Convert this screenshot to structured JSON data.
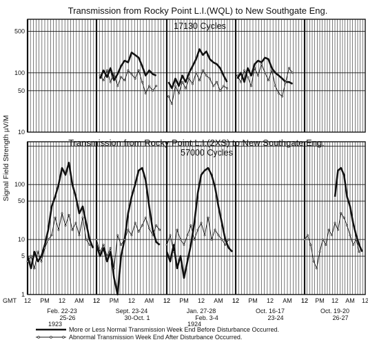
{
  "chart_data": {
    "type": "line",
    "ylabel": "Signal Field Strength µV/M",
    "x_axis_start": "GMT",
    "hour_ticks": [
      "12",
      "PM",
      "12",
      "AM",
      "12"
    ],
    "weekends": [
      {
        "dates": "Feb. 22-23\n25-26",
        "year": "1923"
      },
      {
        "dates": "Sept. 23-24\n30-Oct. 1",
        "year": ""
      },
      {
        "dates": "Jan. 27-28\nFeb. 3-4",
        "year": "1924"
      },
      {
        "dates": "Oct. 16-17\n23-24",
        "year": ""
      },
      {
        "dates": "Oct. 19-20\n26-27",
        "year": ""
      }
    ],
    "legend": [
      {
        "label": "More or Less Normal Transmission Week End Before Disturbance Occurred.",
        "style": "heavy"
      },
      {
        "label": "Abnormal Transmission Week End After Disturbance Occurred.",
        "style": "light-circles"
      }
    ],
    "panels": [
      {
        "title": "Transmission from Rocky Point L.I.(WQL) to New Southgate Eng.",
        "subtitle": "17130 Cycles",
        "yscale": "log",
        "ylim": [
          10,
          800
        ],
        "yticks": [
          500,
          100,
          50,
          10
        ],
        "series": [
          {
            "name": "normal",
            "segments": [
              {
                "weekend": 1,
                "x": [
                  0.1,
                  0.2,
                  0.3,
                  0.4,
                  0.5,
                  0.6,
                  0.7,
                  0.8,
                  0.9,
                  1.0,
                  1.1,
                  1.2,
                  1.3,
                  1.4,
                  1.5,
                  1.6,
                  1.7
                ],
                "y": [
                  80,
                  110,
                  85,
                  120,
                  75,
                  95,
                  130,
                  160,
                  150,
                  220,
                  200,
                  180,
                  130,
                  90,
                  110,
                  95,
                  90
                ]
              },
              {
                "weekend": 2,
                "x": [
                  0.05,
                  0.15,
                  0.25,
                  0.35,
                  0.45,
                  0.55,
                  0.65,
                  0.75,
                  0.85,
                  0.95,
                  1.05,
                  1.15,
                  1.25,
                  1.35,
                  1.45,
                  1.55,
                  1.65,
                  1.75
                ],
                "y": [
                  70,
                  55,
                  80,
                  60,
                  90,
                  70,
                  100,
                  130,
                  170,
                  250,
                  200,
                  230,
                  170,
                  150,
                  140,
                  120,
                  90,
                  70
                ]
              },
              {
                "weekend": 3,
                "x": [
                  0.05,
                  0.15,
                  0.25,
                  0.35,
                  0.45,
                  0.55,
                  0.65,
                  0.75,
                  0.85,
                  0.95,
                  1.05,
                  1.15,
                  1.25,
                  1.35,
                  1.45,
                  1.55,
                  1.65
                ],
                "y": [
                  80,
                  100,
                  70,
                  120,
                  90,
                  140,
                  160,
                  150,
                  180,
                  170,
                  120,
                  100,
                  90,
                  80,
                  70,
                  70,
                  65
                ]
              }
            ]
          },
          {
            "name": "abnormal",
            "segments": [
              {
                "weekend": 1,
                "x": [
                  0.1,
                  0.2,
                  0.3,
                  0.4,
                  0.5,
                  0.6,
                  0.7,
                  0.8,
                  0.9,
                  1.0,
                  1.1,
                  1.2,
                  1.3,
                  1.4,
                  1.5,
                  1.6,
                  1.7
                ],
                "y": [
                  90,
                  75,
                  110,
                  70,
                  95,
                  60,
                  85,
                  75,
                  110,
                  95,
                  80,
                  110,
                  70,
                  45,
                  60,
                  50,
                  60
                ]
              },
              {
                "weekend": 2,
                "x": [
                  0.05,
                  0.15,
                  0.25,
                  0.35,
                  0.45,
                  0.55,
                  0.65,
                  0.75,
                  0.85,
                  0.95,
                  1.05,
                  1.15,
                  1.25,
                  1.35,
                  1.45,
                  1.55,
                  1.65,
                  1.75
                ],
                "y": [
                  40,
                  30,
                  60,
                  45,
                  70,
                  55,
                  80,
                  65,
                  100,
                  75,
                  110,
                  90,
                  80,
                  60,
                  70,
                  50,
                  60,
                  55
                ]
              },
              {
                "weekend": 3,
                "x": [
                  0.05,
                  0.15,
                  0.25,
                  0.35,
                  0.45,
                  0.55,
                  0.65,
                  0.75,
                  0.85,
                  0.95,
                  1.05,
                  1.15,
                  1.25,
                  1.35,
                  1.45,
                  1.55,
                  1.65
                ],
                "y": [
                  90,
                  70,
                  110,
                  85,
                  60,
                  120,
                  90,
                  140,
                  100,
                  75,
                  110,
                  60,
                  45,
                  40,
                  70,
                  120,
                  100
                ]
              }
            ]
          }
        ]
      },
      {
        "title": "Transmission from Rocky Point L.I.(2XS) to New Southgate Eng.",
        "subtitle": "57000 Cycles",
        "yscale": "log",
        "ylim": [
          1,
          600
        ],
        "yticks": [
          100,
          50,
          10,
          5,
          1
        ],
        "series": [
          {
            "name": "normal",
            "segments": [
              {
                "weekend": 0,
                "x": [
                  0.0,
                  0.1,
                  0.2,
                  0.3,
                  0.4,
                  0.5,
                  0.6,
                  0.7,
                  0.8,
                  0.9,
                  1.0,
                  1.1,
                  1.2,
                  1.3,
                  1.4,
                  1.5,
                  1.6,
                  1.7,
                  1.8,
                  1.9
                ],
                "y": [
                  5,
                  3,
                  6,
                  4,
                  5,
                  8,
                  15,
                  40,
                  60,
                  100,
                  200,
                  150,
                  250,
                  100,
                  60,
                  30,
                  40,
                  20,
                  10,
                  7
                ]
              },
              {
                "weekend": 1,
                "x": [
                  0.0,
                  0.1,
                  0.2,
                  0.3,
                  0.4,
                  0.5,
                  0.6,
                  0.7,
                  0.8,
                  0.9,
                  1.0,
                  1.1,
                  1.2,
                  1.3,
                  1.4,
                  1.5,
                  1.6,
                  1.7,
                  1.8
                ],
                "y": [
                  8,
                  5,
                  7,
                  4,
                  6,
                  2,
                  1,
                  5,
                  10,
                  30,
                  60,
                  100,
                  180,
                  200,
                  120,
                  40,
                  15,
                  9,
                  8
                ]
              },
              {
                "weekend": 2,
                "x": [
                  0.0,
                  0.1,
                  0.2,
                  0.3,
                  0.4,
                  0.5,
                  0.6,
                  0.7,
                  0.8,
                  0.9,
                  1.0,
                  1.1,
                  1.2,
                  1.3,
                  1.4,
                  1.5,
                  1.6,
                  1.7,
                  1.8,
                  1.9
                ],
                "y": [
                  6,
                  4,
                  8,
                  3,
                  5,
                  2,
                  4,
                  8,
                  20,
                  70,
                  150,
                  180,
                  200,
                  150,
                  90,
                  40,
                  20,
                  10,
                  7,
                  6
                ]
              },
              {
                "weekend": 4,
                "x": [
                  1.0,
                  1.1,
                  1.2,
                  1.3,
                  1.4,
                  1.5,
                  1.6,
                  1.7,
                  1.8,
                  1.9
                ],
                "y": [
                  60,
                  180,
                  200,
                  150,
                  60,
                  40,
                  20,
                  12,
                  8,
                  6
                ]
              }
            ]
          },
          {
            "name": "abnormal",
            "segments": [
              {
                "weekend": 0,
                "x": [
                  0.0,
                  0.1,
                  0.2,
                  0.3,
                  0.4,
                  0.5,
                  0.6,
                  0.7,
                  0.8,
                  0.9,
                  1.0,
                  1.1,
                  1.2,
                  1.3,
                  1.4,
                  1.5,
                  1.6,
                  1.7,
                  1.8
                ],
                "y": [
                  4,
                  5,
                  3,
                  6,
                  4,
                  7,
                  10,
                  12,
                  25,
                  15,
                  30,
                  18,
                  28,
                  15,
                  20,
                  12,
                  25,
                  10,
                  8
                ]
              },
              {
                "weekend": 1,
                "x": [
                  0.0,
                  0.1,
                  0.2,
                  0.3,
                  0.4,
                  0.5,
                  0.6,
                  0.7,
                  0.8,
                  0.9,
                  1.0,
                  1.1,
                  1.2,
                  1.3,
                  1.4,
                  1.5,
                  1.6,
                  1.7,
                  1.8
                ],
                "y": [
                  10,
                  6,
                  8,
                  5,
                  7,
                  3,
                  12,
                  8,
                  10,
                  15,
                  12,
                  20,
                  14,
                  18,
                  25,
                  16,
                  12,
                  18,
                  15
                ]
              },
              {
                "weekend": 2,
                "x": [
                  0.0,
                  0.1,
                  0.2,
                  0.3,
                  0.4,
                  0.5,
                  0.6,
                  0.7,
                  0.8,
                  0.9,
                  1.0,
                  1.1,
                  1.2,
                  1.3,
                  1.4,
                  1.5,
                  1.6,
                  1.7,
                  1.8
                ],
                "y": [
                  8,
                  12,
                  6,
                  15,
                  10,
                  8,
                  12,
                  18,
                  10,
                  15,
                  20,
                  12,
                  25,
                  10,
                  15,
                  12,
                  10,
                  8,
                  10
                ]
              },
              {
                "weekend": 4,
                "x": [
                  0.0,
                  0.1,
                  0.2,
                  0.3,
                  0.4,
                  0.5,
                  0.6,
                  0.7,
                  0.8,
                  0.9,
                  1.0,
                  1.1,
                  1.2,
                  1.3,
                  1.4,
                  1.5,
                  1.6,
                  1.7,
                  1.8
                ],
                "y": [
                  10,
                  12,
                  8,
                  4,
                  3,
                  6,
                  10,
                  8,
                  15,
                  12,
                  20,
                  15,
                  30,
                  25,
                  18,
                  12,
                  8,
                  10,
                  6
                ]
              }
            ]
          }
        ]
      }
    ]
  }
}
